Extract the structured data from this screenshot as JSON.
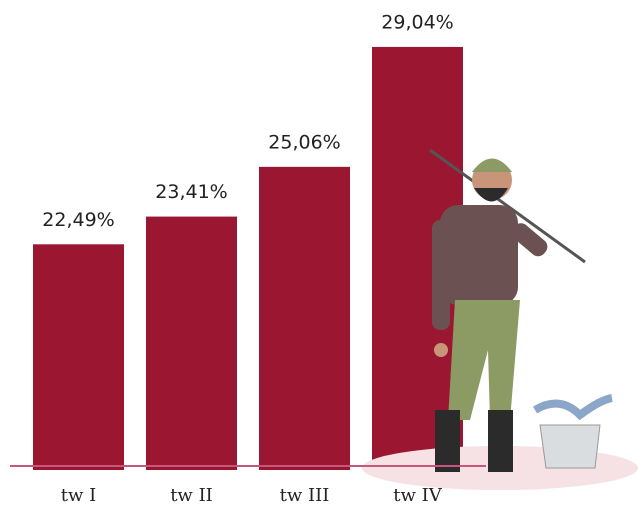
{
  "chart_data": {
    "type": "bar",
    "categories": [
      "tw I",
      "tw II",
      "tw III",
      "tw IV"
    ],
    "values": [
      22.49,
      23.41,
      25.06,
      29.04
    ],
    "value_labels": [
      "22,49%",
      "23,41%",
      "25,06%",
      "29,04%"
    ],
    "color": "#9b1631",
    "ylim": [
      15,
      30
    ]
  }
}
